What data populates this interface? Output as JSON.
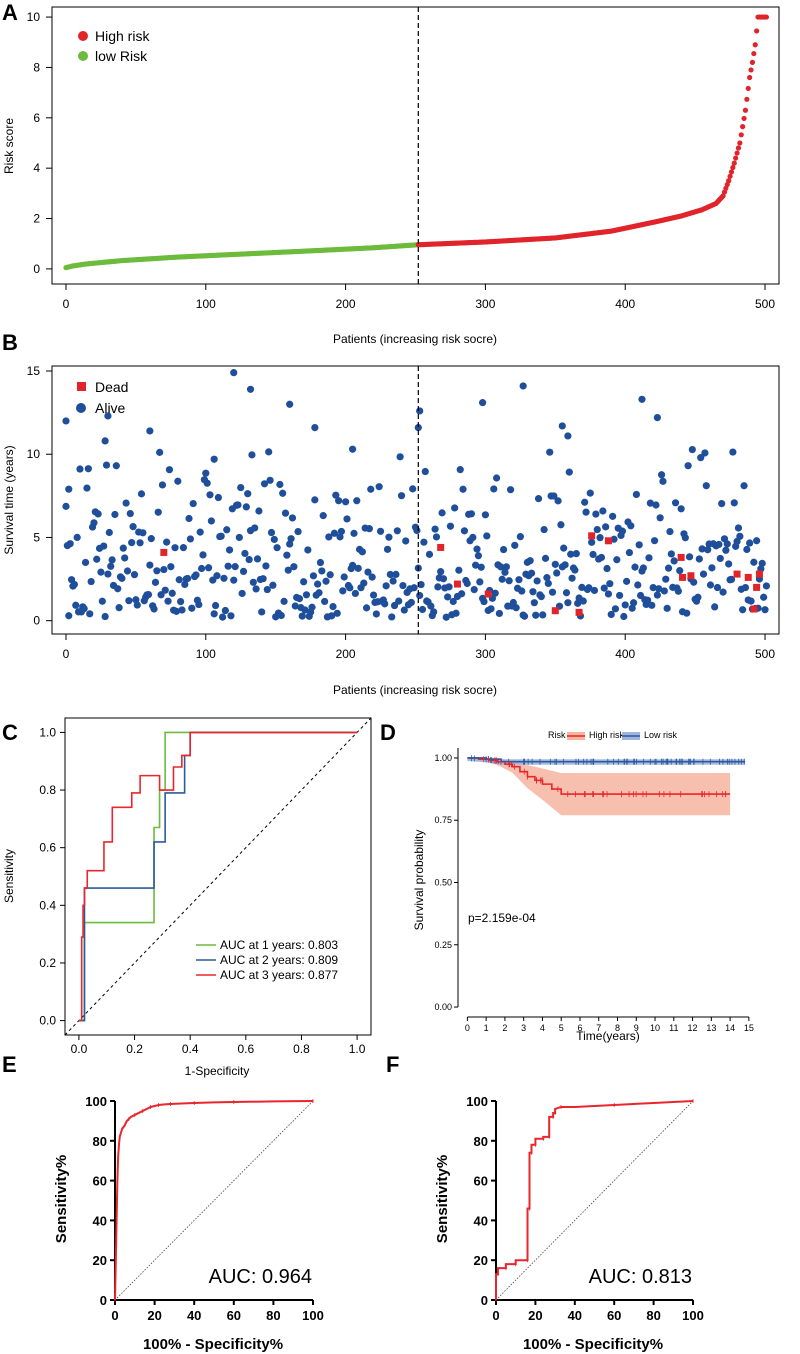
{
  "colors": {
    "high": "#e0242a",
    "low": "#6cbb3c",
    "dead": "#e0242a",
    "alive": "#1f4e9a",
    "green": "#6cbb3c",
    "blue": "#2b5b9e",
    "red": "#e8262c",
    "band_high": "#f6b4a0",
    "band_low": "#9fb4de"
  },
  "panels": {
    "A": {
      "letter": "A"
    },
    "B": {
      "letter": "B"
    },
    "C": {
      "letter": "C"
    },
    "D": {
      "letter": "D"
    },
    "E": {
      "letter": "E"
    },
    "F": {
      "letter": "F"
    }
  },
  "chart_data": [
    {
      "id": "A",
      "type": "scatter",
      "xlabel": "Patients (increasing risk socre)",
      "ylabel": "Risk score",
      "xlim": [
        -10,
        510
      ],
      "ylim": [
        -0.6,
        10.4
      ],
      "xticks": [
        0,
        100,
        200,
        300,
        400,
        500
      ],
      "yticks": [
        0,
        2,
        4,
        6,
        8,
        10
      ],
      "cutoff": 252,
      "n": 502,
      "legend": [
        "High risk",
        "low Risk"
      ],
      "curve_points": [
        [
          0,
          0.05
        ],
        [
          5,
          0.12
        ],
        [
          15,
          0.2
        ],
        [
          40,
          0.33
        ],
        [
          80,
          0.47
        ],
        [
          130,
          0.6
        ],
        [
          180,
          0.73
        ],
        [
          220,
          0.84
        ],
        [
          252,
          0.96
        ],
        [
          300,
          1.07
        ],
        [
          350,
          1.23
        ],
        [
          390,
          1.5
        ],
        [
          420,
          1.85
        ],
        [
          440,
          2.1
        ],
        [
          455,
          2.35
        ],
        [
          465,
          2.6
        ],
        [
          470,
          2.9
        ],
        [
          474,
          3.5
        ],
        [
          478,
          4.2
        ],
        [
          482,
          5.0
        ],
        [
          486,
          6.3
        ],
        [
          489,
          7.6
        ],
        [
          491,
          8.2
        ],
        [
          493,
          8.9
        ],
        [
          495,
          10.0
        ],
        [
          502,
          10.0
        ]
      ]
    },
    {
      "id": "B",
      "type": "scatter",
      "xlabel": "Patients (increasing risk socre)",
      "ylabel": "Survival time (years)",
      "xlim": [
        -10,
        510
      ],
      "ylim": [
        -0.8,
        15.3
      ],
      "xticks": [
        0,
        100,
        200,
        300,
        400,
        500
      ],
      "yticks": [
        0,
        5,
        10,
        15
      ],
      "cutoff": 252,
      "n": 502,
      "legend": [
        "Dead",
        "Alive"
      ],
      "dead_points": [
        [
          70,
          4.1
        ],
        [
          268,
          4.4
        ],
        [
          280,
          2.2
        ],
        [
          302,
          1.6
        ],
        [
          350,
          0.6
        ],
        [
          367,
          0.5
        ],
        [
          376,
          5.1
        ],
        [
          388,
          4.8
        ],
        [
          440,
          3.8
        ],
        [
          441,
          2.6
        ],
        [
          447,
          2.7
        ],
        [
          480,
          2.8
        ],
        [
          488,
          2.6
        ],
        [
          492,
          0.7
        ],
        [
          494,
          2.0
        ],
        [
          496,
          2.8
        ]
      ],
      "alive_highlights": [
        [
          0,
          12.0
        ],
        [
          120,
          14.9
        ],
        [
          132,
          13.9
        ],
        [
          160,
          13.0
        ],
        [
          178,
          11.6
        ],
        [
          252,
          11.6
        ],
        [
          253,
          12.6
        ],
        [
          298,
          13.1
        ],
        [
          327,
          14.1
        ],
        [
          355,
          11.7
        ],
        [
          359,
          11.1
        ],
        [
          412,
          13.3
        ],
        [
          423,
          12.2
        ],
        [
          2,
          7.9
        ],
        [
          28,
          10.8
        ],
        [
          30,
          12.3
        ],
        [
          60,
          11.4
        ],
        [
          106,
          9.7
        ],
        [
          205,
          10.3
        ]
      ]
    },
    {
      "id": "C",
      "type": "line",
      "xlabel": "1-Specificity",
      "ylabel": "Sensitivity",
      "xlim": [
        -0.05,
        1.05
      ],
      "ylim": [
        -0.05,
        1.05
      ],
      "xticks": [
        "0.0",
        "0.2",
        "0.4",
        "0.6",
        "0.8",
        "1.0"
      ],
      "yticks": [
        "0.0",
        "0.2",
        "0.4",
        "0.6",
        "0.8",
        "1.0"
      ],
      "series": [
        {
          "name": "AUC at 1 years: 0.803",
          "x": [
            0,
            0.02,
            0.02,
            0.27,
            0.27,
            0.29,
            0.29,
            0.31,
            0.31,
            1
          ],
          "y": [
            0,
            0,
            0.34,
            0.34,
            0.67,
            0.67,
            0.8,
            0.8,
            1,
            1
          ]
        },
        {
          "name": "AUC at 2 years: 0.809",
          "x": [
            0,
            0.02,
            0.02,
            0.27,
            0.27,
            0.31,
            0.31,
            0.38,
            0.38,
            0.4,
            0.4,
            1
          ],
          "y": [
            0,
            0,
            0.46,
            0.46,
            0.62,
            0.62,
            0.79,
            0.79,
            0.92,
            0.92,
            1,
            1
          ]
        },
        {
          "name": "AUC at 3 years: 0.877",
          "x": [
            0,
            0.01,
            0.01,
            0.015,
            0.015,
            0.02,
            0.02,
            0.03,
            0.03,
            0.09,
            0.09,
            0.12,
            0.12,
            0.19,
            0.19,
            0.22,
            0.22,
            0.29,
            0.29,
            0.34,
            0.34,
            0.37,
            0.37,
            0.4,
            0.4,
            1
          ],
          "y": [
            0,
            0,
            0.29,
            0.29,
            0.4,
            0.4,
            0.46,
            0.46,
            0.52,
            0.52,
            0.62,
            0.62,
            0.74,
            0.74,
            0.79,
            0.79,
            0.85,
            0.85,
            0.8,
            0.8,
            0.88,
            0.88,
            0.92,
            0.92,
            1,
            1
          ]
        }
      ]
    },
    {
      "id": "D",
      "type": "line",
      "xlabel": "Time(years)",
      "ylabel": "Survival probability",
      "xlim": [
        -0.5,
        15.7
      ],
      "ylim": [
        -0.04,
        1.04
      ],
      "xticks": [
        "0",
        "1",
        "2",
        "3",
        "4",
        "5",
        "6",
        "7",
        "8",
        "9",
        "10",
        "11",
        "12",
        "13",
        "14",
        "15"
      ],
      "yticks": [
        "0.00",
        "0.25",
        "0.50",
        "0.75",
        "1.00"
      ],
      "legend_title": "Risk",
      "p_value": "p=2.159e-04",
      "series": [
        {
          "name": "High risk",
          "x": [
            0,
            0.6,
            1.2,
            1.6,
            2,
            2.4,
            2.8,
            3.2,
            3.6,
            4,
            4.5,
            5,
            14
          ],
          "y": [
            1,
            0.995,
            0.99,
            0.985,
            0.975,
            0.965,
            0.945,
            0.925,
            0.91,
            0.895,
            0.875,
            0.855,
            0.855
          ]
        },
        {
          "name": "Low risk",
          "x": [
            0,
            1,
            1.8,
            14.8
          ],
          "y": [
            1,
            0.995,
            0.985,
            0.985
          ]
        }
      ]
    },
    {
      "id": "E",
      "type": "line",
      "xlabel": "100% - Specificity%",
      "ylabel": "Sensitivity%",
      "xlim": [
        0,
        100
      ],
      "ylim": [
        0,
        100
      ],
      "xticks": [
        "0",
        "20",
        "40",
        "60",
        "80",
        "100"
      ],
      "yticks": [
        "0",
        "20",
        "40",
        "60",
        "80",
        "100"
      ],
      "auc_label": "AUC: 0.964",
      "series": [
        {
          "name": "ROC",
          "x": [
            0,
            0.4,
            0.8,
            1.2,
            1.6,
            2,
            2.4,
            3,
            3.6,
            4.4,
            5,
            6,
            7,
            8,
            10,
            12,
            14,
            16,
            18,
            20,
            22,
            25,
            28,
            32,
            40,
            50,
            60,
            80,
            100
          ],
          "y": [
            0,
            20,
            40,
            60,
            72,
            78,
            82,
            84,
            86,
            87,
            88,
            90,
            91,
            92,
            93,
            94,
            95,
            96,
            97,
            97.5,
            98,
            98.3,
            98.5,
            98.7,
            99,
            99.3,
            99.5,
            99.8,
            100
          ]
        }
      ]
    },
    {
      "id": "F",
      "type": "line",
      "xlabel": "100% - Specificity%",
      "ylabel": "Sensitivity%",
      "xlim": [
        0,
        100
      ],
      "ylim": [
        0,
        100
      ],
      "xticks": [
        "0",
        "20",
        "40",
        "60",
        "80",
        "100"
      ],
      "yticks": [
        "0",
        "20",
        "40",
        "60",
        "80",
        "100"
      ],
      "auc_label": "AUC: 0.813",
      "series": [
        {
          "name": "ROC",
          "x": [
            0,
            0,
            1,
            1,
            5,
            5,
            10,
            10,
            16,
            16,
            17,
            17,
            18,
            18,
            20,
            20,
            24,
            24,
            27,
            27,
            29,
            29,
            30,
            30,
            33,
            40,
            60,
            80,
            100
          ],
          "y": [
            0,
            13,
            13,
            16,
            16,
            18,
            18,
            20,
            20,
            46,
            46,
            74,
            74,
            78,
            78,
            81,
            81,
            82,
            82,
            92,
            92,
            94,
            94,
            96,
            97,
            97,
            98,
            99,
            100
          ]
        }
      ]
    }
  ]
}
